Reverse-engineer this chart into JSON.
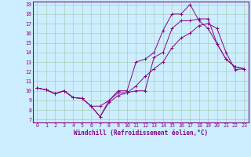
{
  "xlabel": "Windchill (Refroidissement éolien,°C)",
  "bg_color": "#cceeff",
  "line_color": "#880088",
  "grid_color": "#aaccbb",
  "xlim": [
    -0.5,
    23.5
  ],
  "ylim": [
    6.7,
    19.3
  ],
  "xticks": [
    0,
    1,
    2,
    3,
    4,
    5,
    6,
    7,
    8,
    9,
    10,
    11,
    12,
    13,
    14,
    15,
    16,
    17,
    18,
    19,
    20,
    21,
    22,
    23
  ],
  "yticks": [
    7,
    8,
    9,
    10,
    11,
    12,
    13,
    14,
    15,
    16,
    17,
    18,
    19
  ],
  "line1_x": [
    0,
    1,
    2,
    3,
    4,
    5,
    6,
    7,
    8,
    9,
    10,
    11,
    12,
    13,
    14,
    15,
    16,
    17,
    18,
    19,
    20,
    21,
    22,
    23
  ],
  "line1_y": [
    10.3,
    10.1,
    9.7,
    10.0,
    9.3,
    9.2,
    8.4,
    8.4,
    9.0,
    10.0,
    10.0,
    13.0,
    13.3,
    14.0,
    16.3,
    18.0,
    18.0,
    19.0,
    17.3,
    16.5,
    14.9,
    13.3,
    12.5,
    12.3
  ],
  "line2_x": [
    0,
    1,
    2,
    3,
    4,
    5,
    6,
    7,
    8,
    9,
    10,
    11,
    12,
    13,
    14,
    15,
    16,
    17,
    18,
    19,
    20,
    21,
    22,
    23
  ],
  "line2_y": [
    10.3,
    10.1,
    9.7,
    10.0,
    9.3,
    9.2,
    8.4,
    7.3,
    8.8,
    9.5,
    9.8,
    10.0,
    10.0,
    13.5,
    14.0,
    16.5,
    17.3,
    17.3,
    17.5,
    17.5,
    14.9,
    13.3,
    12.5,
    12.3
  ],
  "line3_x": [
    0,
    1,
    2,
    3,
    4,
    5,
    6,
    7,
    8,
    9,
    10,
    11,
    12,
    13,
    14,
    15,
    16,
    17,
    18,
    19,
    20,
    21,
    22,
    23
  ],
  "line3_y": [
    10.3,
    10.1,
    9.7,
    10.0,
    9.3,
    9.2,
    8.4,
    7.3,
    9.0,
    9.8,
    9.8,
    10.5,
    11.5,
    12.3,
    13.0,
    14.5,
    15.5,
    16.0,
    16.8,
    17.0,
    16.5,
    14.0,
    12.2,
    12.3
  ],
  "xlabel_fontsize": 5.5,
  "tick_fontsize": 4.8,
  "linewidth": 0.7,
  "markersize": 2.5
}
